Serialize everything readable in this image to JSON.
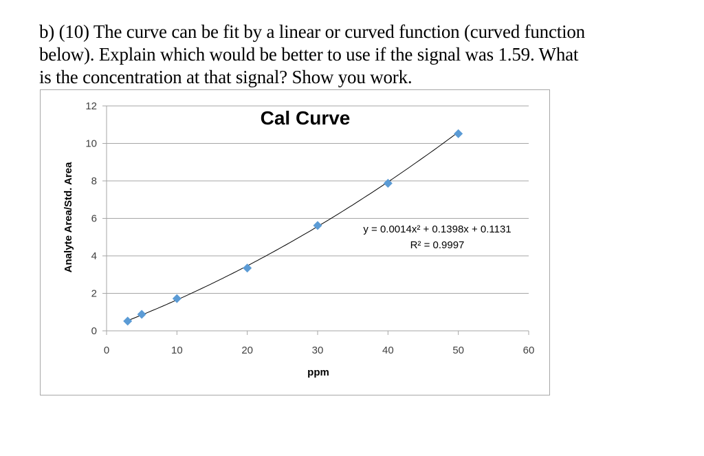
{
  "question": {
    "lines": [
      "b) (10)  The curve can be fit by a linear or curved function (curved function",
      "below).  Explain which would be better to use if the signal was 1.59.  What",
      "is the concentration at that signal?  Show you work."
    ]
  },
  "chart": {
    "title": "Cal Curve",
    "xlabel": "ppm",
    "ylabel": "Analyte Area/Std. Area",
    "x_ticks": [
      "0",
      "10",
      "20",
      "30",
      "40",
      "50",
      "60"
    ],
    "y_ticks": [
      "0",
      "2",
      "4",
      "6",
      "8",
      "10",
      "12"
    ],
    "equation": "y = 0.0014x² + 0.1398x + 0.1131",
    "r_squared": "R² = 0.9997",
    "marker_color": "#5b9bd5",
    "trendline_color": "#000000",
    "gridline_color": "#a6a6a6"
  },
  "chart_data": {
    "type": "scatter",
    "title": "Cal Curve",
    "xlabel": "ppm",
    "ylabel": "Analyte Area/Std. Area",
    "x": [
      3,
      5,
      10,
      20,
      30,
      40,
      50
    ],
    "y": [
      0.52,
      0.88,
      1.72,
      3.35,
      5.62,
      7.87,
      10.52
    ],
    "xlim": [
      0,
      60
    ],
    "ylim": [
      0,
      12
    ],
    "x_ticks": [
      0,
      10,
      20,
      30,
      40,
      50,
      60
    ],
    "y_ticks": [
      0,
      2,
      4,
      6,
      8,
      10,
      12
    ],
    "grid": "horizontal major gridlines",
    "legend": "none",
    "trendline": {
      "type": "polynomial",
      "order": 2,
      "coefficients": {
        "a": 0.0014,
        "b": 0.1398,
        "c": 0.1131
      },
      "equation": "y = 0.0014x² + 0.1398x + 0.1131",
      "r_squared": 0.9997,
      "x_range": [
        3,
        50
      ]
    }
  }
}
